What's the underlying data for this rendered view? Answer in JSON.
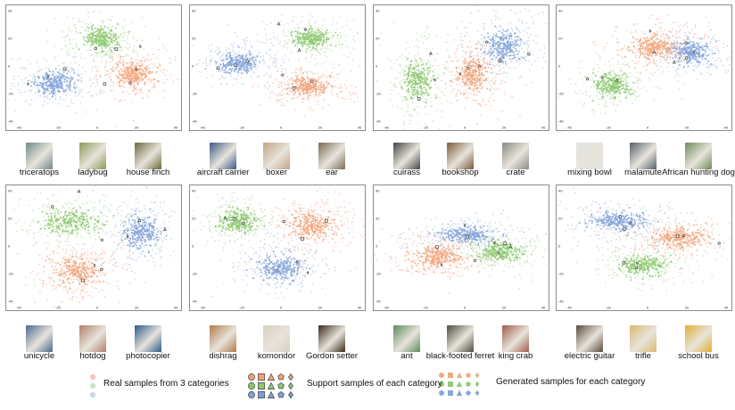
{
  "colors": {
    "real": [
      "#f6c9b8",
      "#cde5c6",
      "#c9d6ea"
    ],
    "support": [
      "#f0a07a",
      "#8cc671",
      "#7f9ed6"
    ],
    "generated": [
      "#f3a880",
      "#91cb74",
      "#86a5dc"
    ],
    "marker_edge": "#444444"
  },
  "legend": {
    "real_label": "Real samples from 3 categories",
    "support_label": "Support samples of each category",
    "generated_label": "Generated samples for each category"
  },
  "chart_data": [
    {
      "type": "scatter",
      "xlim": [
        -40,
        40
      ],
      "ylim": [
        -40,
        40
      ],
      "xticks": [
        "-40",
        "-20",
        "0",
        "20",
        "40"
      ],
      "yticks": [
        "-40",
        "-20",
        "0",
        "20",
        "40"
      ],
      "categories": [
        "triceratops",
        "ladybug",
        "house finch"
      ],
      "clusters": [
        {
          "series": 2,
          "cx": -22,
          "cy": -12,
          "sx": 9,
          "sy": 7
        },
        {
          "series": 1,
          "cx": 2,
          "cy": 20,
          "sx": 8,
          "sy": 7
        },
        {
          "series": 0,
          "cx": 18,
          "cy": -6,
          "sx": 9,
          "sy": 8
        }
      ]
    },
    {
      "type": "scatter",
      "xlim": [
        -40,
        40
      ],
      "ylim": [
        -40,
        40
      ],
      "xticks": [
        "-40",
        "-20",
        "0",
        "20",
        "40"
      ],
      "yticks": [
        "-40",
        "-20",
        "0",
        "20",
        "40"
      ],
      "categories": [
        "aircraft carrier",
        "boxer",
        "ear"
      ],
      "clusters": [
        {
          "series": 2,
          "cx": -22,
          "cy": 2,
          "sx": 9,
          "sy": 6
        },
        {
          "series": 1,
          "cx": 16,
          "cy": 20,
          "sx": 9,
          "sy": 6
        },
        {
          "series": 0,
          "cx": 14,
          "cy": -15,
          "sx": 9,
          "sy": 6
        }
      ]
    },
    {
      "type": "scatter",
      "xlim": [
        -40,
        40
      ],
      "ylim": [
        -40,
        40
      ],
      "xticks": [
        "-40",
        "-20",
        "0",
        "20",
        "40"
      ],
      "yticks": [
        "-40",
        "-20",
        "0",
        "20",
        "40"
      ],
      "categories": [
        "cuirass",
        "bookshop",
        "crate"
      ],
      "clusters": [
        {
          "series": 1,
          "cx": -24,
          "cy": -10,
          "sx": 6,
          "sy": 12
        },
        {
          "series": 0,
          "cx": 4,
          "cy": -6,
          "sx": 7,
          "sy": 12
        },
        {
          "series": 2,
          "cx": 20,
          "cy": 14,
          "sx": 8,
          "sy": 10
        }
      ]
    },
    {
      "type": "scatter",
      "xlim": [
        -40,
        40
      ],
      "ylim": [
        -40,
        40
      ],
      "xticks": [
        "-40",
        "-20",
        "0",
        "20",
        "40"
      ],
      "yticks": [
        "-40",
        "-20",
        "0",
        "20",
        "40"
      ],
      "categories": [
        "mixing bowl",
        "malamute",
        "African hunting dog"
      ],
      "clusters": [
        {
          "series": 1,
          "cx": -18,
          "cy": -14,
          "sx": 8,
          "sy": 7
        },
        {
          "series": 0,
          "cx": 4,
          "cy": 14,
          "sx": 10,
          "sy": 7
        },
        {
          "series": 2,
          "cx": 22,
          "cy": 10,
          "sx": 8,
          "sy": 7
        }
      ]
    },
    {
      "type": "scatter",
      "xlim": [
        -40,
        40
      ],
      "ylim": [
        -40,
        40
      ],
      "xticks": [
        "-40",
        "-20",
        "0",
        "20",
        "40"
      ],
      "yticks": [
        "-40",
        "-20",
        "0",
        "20",
        "40"
      ],
      "categories": [
        "unicycle",
        "hotdog",
        "photocopier"
      ],
      "clusters": [
        {
          "series": 1,
          "cx": -14,
          "cy": 18,
          "sx": 12,
          "sy": 8
        },
        {
          "series": 0,
          "cx": -10,
          "cy": -18,
          "sx": 10,
          "sy": 9
        },
        {
          "series": 2,
          "cx": 22,
          "cy": 10,
          "sx": 8,
          "sy": 10
        }
      ]
    },
    {
      "type": "scatter",
      "xlim": [
        -40,
        40
      ],
      "ylim": [
        -40,
        40
      ],
      "xticks": [
        "-40",
        "-20",
        "0",
        "20",
        "40"
      ],
      "yticks": [
        "-40",
        "-20",
        "0",
        "20",
        "40"
      ],
      "categories": [
        "dishrag",
        "komondor",
        "Gordon setter"
      ],
      "clusters": [
        {
          "series": 1,
          "cx": -22,
          "cy": 18,
          "sx": 8,
          "sy": 7
        },
        {
          "series": 0,
          "cx": 16,
          "cy": 14,
          "sx": 10,
          "sy": 8
        },
        {
          "series": 2,
          "cx": 0,
          "cy": -16,
          "sx": 10,
          "sy": 8
        }
      ]
    },
    {
      "type": "scatter",
      "xlim": [
        -40,
        40
      ],
      "ylim": [
        -40,
        40
      ],
      "xticks": [
        "-40",
        "-20",
        "0",
        "20",
        "40"
      ],
      "yticks": [
        "-40",
        "-20",
        "0",
        "20",
        "40"
      ],
      "categories": [
        "ant",
        "black-footed ferret",
        "king crab"
      ],
      "clusters": [
        {
          "series": 0,
          "cx": -14,
          "cy": -8,
          "sx": 10,
          "sy": 7
        },
        {
          "series": 2,
          "cx": 0,
          "cy": 8,
          "sx": 12,
          "sy": 5
        },
        {
          "series": 1,
          "cx": 18,
          "cy": -4,
          "sx": 10,
          "sy": 6
        }
      ]
    },
    {
      "type": "scatter",
      "xlim": [
        -40,
        40
      ],
      "ylim": [
        -40,
        40
      ],
      "xticks": [
        "-40",
        "-20",
        "0",
        "20",
        "40"
      ],
      "yticks": [
        "-40",
        "-20",
        "0",
        "20",
        "40"
      ],
      "categories": [
        "electric guitar",
        "trifle",
        "school bus"
      ],
      "clusters": [
        {
          "series": 2,
          "cx": -14,
          "cy": 18,
          "sx": 12,
          "sy": 6
        },
        {
          "series": 0,
          "cx": 16,
          "cy": 6,
          "sx": 12,
          "sy": 6
        },
        {
          "series": 1,
          "cx": -2,
          "cy": -14,
          "sx": 10,
          "sy": 6
        }
      ]
    }
  ]
}
